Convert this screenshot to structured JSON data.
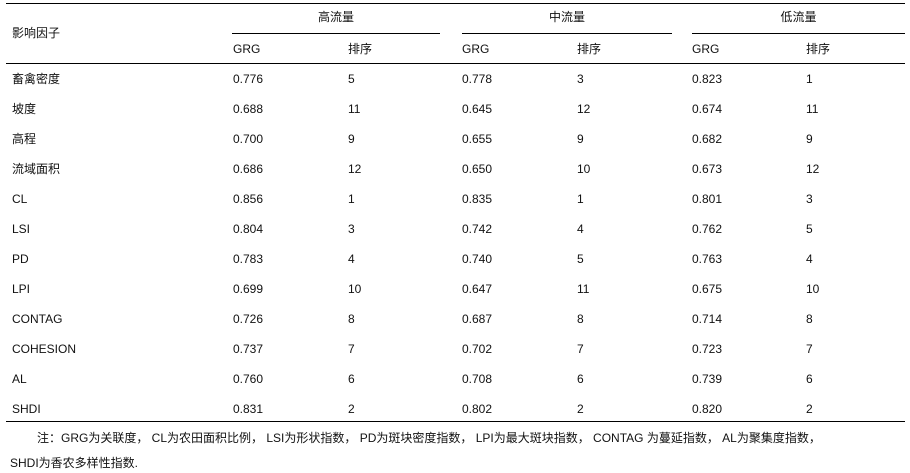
{
  "table": {
    "factor_header": "影响因子",
    "groups": [
      {
        "label": "高流量",
        "sub": [
          "GRG",
          "排序"
        ]
      },
      {
        "label": "中流量",
        "sub": [
          "GRG",
          "排序"
        ]
      },
      {
        "label": "低流量",
        "sub": [
          "GRG",
          "排序"
        ]
      }
    ],
    "rows": [
      [
        "畜禽密度",
        "0.776",
        "5",
        "0.778",
        "3",
        "0.823",
        "1"
      ],
      [
        "坡度",
        "0.688",
        "11",
        "0.645",
        "12",
        "0.674",
        "11"
      ],
      [
        "高程",
        "0.700",
        "9",
        "0.655",
        "9",
        "0.682",
        "9"
      ],
      [
        "流域面积",
        "0.686",
        "12",
        "0.650",
        "10",
        "0.673",
        "12"
      ],
      [
        "CL",
        "0.856",
        "1",
        "0.835",
        "1",
        "0.801",
        "3"
      ],
      [
        "LSI",
        "0.804",
        "3",
        "0.742",
        "4",
        "0.762",
        "5"
      ],
      [
        "PD",
        "0.783",
        "4",
        "0.740",
        "5",
        "0.763",
        "4"
      ],
      [
        "LPI",
        "0.699",
        "10",
        "0.647",
        "11",
        "0.675",
        "10"
      ],
      [
        "CONTAG",
        "0.726",
        "8",
        "0.687",
        "8",
        "0.714",
        "8"
      ],
      [
        "COHESION",
        "0.737",
        "7",
        "0.702",
        "7",
        "0.723",
        "7"
      ],
      [
        "AL",
        "0.760",
        "6",
        "0.708",
        "6",
        "0.739",
        "6"
      ],
      [
        "SHDI",
        "0.831",
        "2",
        "0.802",
        "2",
        "0.820",
        "2"
      ]
    ]
  },
  "note": {
    "line1": "注：GRG为关联度， CL为农田面积比例， LSI为形状指数， PD为斑块密度指数， LPI为最大斑块指数， CONTAG 为蔓延指数， AL为聚集度指数，",
    "line2": "SHDI为香农多样性指数."
  }
}
